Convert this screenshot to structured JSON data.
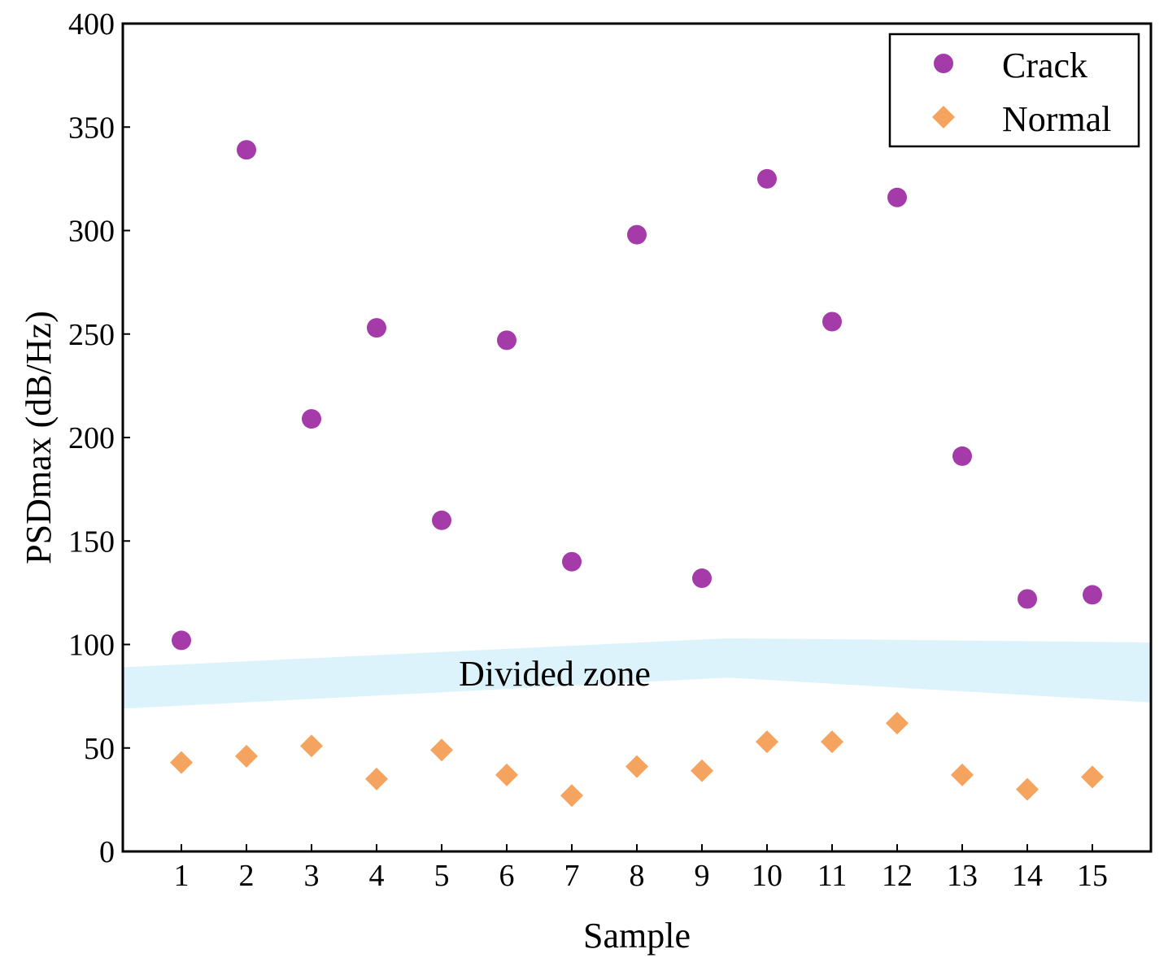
{
  "chart_data": {
    "type": "scatter",
    "xlabel": "Sample",
    "ylabel": "PSDmax (dB/Hz)",
    "x": [
      1,
      2,
      3,
      4,
      5,
      6,
      7,
      8,
      9,
      10,
      11,
      12,
      13,
      14,
      15
    ],
    "xlim": [
      0.1,
      15.9
    ],
    "ylim": [
      0,
      400
    ],
    "y_ticks": [
      0,
      50,
      100,
      150,
      200,
      250,
      300,
      350,
      400
    ],
    "grid": false,
    "legend_position": "top-right",
    "series": [
      {
        "name": "Crack",
        "marker": "circle",
        "color": "#a43ba8",
        "values": [
          102,
          339,
          209,
          253,
          160,
          247,
          140,
          298,
          132,
          325,
          256,
          316,
          191,
          122,
          124
        ]
      },
      {
        "name": "Normal",
        "marker": "diamond",
        "color": "#f5a45f",
        "values": [
          43,
          46,
          51,
          35,
          49,
          37,
          27,
          41,
          39,
          53,
          53,
          62,
          37,
          30,
          36
        ]
      }
    ],
    "band": {
      "label": "Divided zone",
      "color": "#dcf3fb",
      "x": [
        0.1,
        9.4,
        15.9
      ],
      "upper": [
        89,
        103,
        101
      ],
      "lower": [
        69,
        84,
        72
      ]
    }
  }
}
